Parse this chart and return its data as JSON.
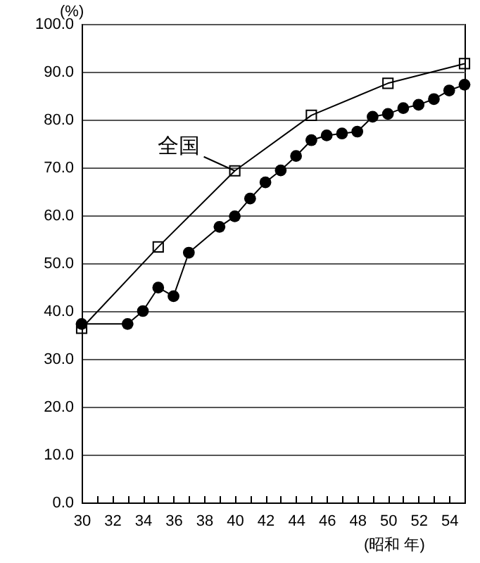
{
  "chart_data": {
    "type": "line",
    "ylabel": "(%)",
    "xlabel": "(昭和 年)",
    "xlim": [
      30,
      55
    ],
    "xticks": [
      {
        "value": 30,
        "label": "30"
      },
      {
        "value": 31,
        "label": null
      },
      {
        "value": 32,
        "label": "32"
      },
      {
        "value": 33,
        "label": null
      },
      {
        "value": 34,
        "label": "34"
      },
      {
        "value": 35,
        "label": null
      },
      {
        "value": 36,
        "label": "36"
      },
      {
        "value": 37,
        "label": null
      },
      {
        "value": 38,
        "label": "38"
      },
      {
        "value": 39,
        "label": null
      },
      {
        "value": 40,
        "label": "40"
      },
      {
        "value": 41,
        "label": null
      },
      {
        "value": 42,
        "label": "42"
      },
      {
        "value": 43,
        "label": null
      },
      {
        "value": 44,
        "label": "44"
      },
      {
        "value": 45,
        "label": null
      },
      {
        "value": 46,
        "label": "46"
      },
      {
        "value": 47,
        "label": null
      },
      {
        "value": 48,
        "label": "48"
      },
      {
        "value": 49,
        "label": null
      },
      {
        "value": 50,
        "label": "50"
      },
      {
        "value": 51,
        "label": null
      },
      {
        "value": 52,
        "label": "52"
      },
      {
        "value": 53,
        "label": null
      },
      {
        "value": 54,
        "label": "54"
      }
    ],
    "ylim": [
      0,
      100
    ],
    "yticks": [
      {
        "value": 0,
        "label": "0.0"
      },
      {
        "value": 10,
        "label": "10.0"
      },
      {
        "value": 20,
        "label": "20.0"
      },
      {
        "value": 30,
        "label": "30.0"
      },
      {
        "value": 40,
        "label": "40.0"
      },
      {
        "value": 50,
        "label": "50.0"
      },
      {
        "value": 60,
        "label": "60.0"
      },
      {
        "value": 70,
        "label": "70.0"
      },
      {
        "value": 80,
        "label": "80.0"
      },
      {
        "value": 90,
        "label": "90.0"
      },
      {
        "value": 100,
        "label": "100.0"
      }
    ],
    "grid": "y",
    "series": [
      {
        "name": "全国",
        "color": "#000000",
        "marker": "square",
        "x": [
          30,
          35,
          40,
          45,
          50,
          55
        ],
        "values": [
          36.4,
          53.4,
          69.3,
          80.9,
          87.6,
          91.7
        ]
      },
      {
        "color": "#000000",
        "marker": "circle",
        "x": [
          30,
          33,
          34,
          35,
          36,
          37,
          39,
          40,
          41,
          42,
          43,
          44,
          45,
          46,
          47,
          48,
          49,
          50,
          51,
          52,
          53,
          54,
          55
        ],
        "values": [
          37.3,
          37.3,
          40.0,
          44.9,
          43.1,
          52.2,
          57.6,
          59.8,
          63.5,
          66.9,
          69.4,
          72.4,
          75.7,
          76.7,
          77.1,
          77.5,
          80.6,
          81.2,
          82.4,
          83.1,
          84.3,
          86.1,
          87.3
        ]
      }
    ]
  }
}
